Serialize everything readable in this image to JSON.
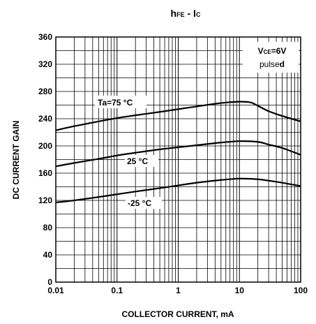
{
  "chart_data": {
    "type": "line",
    "title": {
      "main1": "h",
      "sub1": "FE",
      "mid": " - I",
      "sub2": "C"
    },
    "xlabel": "COLLECTOR CURRENT, mA",
    "ylabel": "DC CURRENT GAIN",
    "x_scale": "log",
    "xlim": [
      0.01,
      100
    ],
    "ylim": [
      0,
      360
    ],
    "x_ticks": [
      0.01,
      0.1,
      1,
      10,
      100
    ],
    "x_tick_labels": [
      "0.01",
      "0.1",
      "1",
      "10",
      "100"
    ],
    "y_ticks": [
      0,
      40,
      80,
      120,
      160,
      200,
      240,
      280,
      320,
      360
    ],
    "y_tick_labels": [
      "0",
      "40",
      "80",
      "120",
      "160",
      "200",
      "240",
      "280",
      "320",
      "360"
    ],
    "grid": true,
    "conditions": {
      "vce_main": "V",
      "vce_sub": "CE",
      "vce_val": "=6V",
      "pulsed_a": "pulse",
      "pulsed_b": "d"
    },
    "series": [
      {
        "name": "Ta=75 °C",
        "x": [
          0.01,
          0.02,
          0.05,
          0.1,
          0.2,
          0.5,
          1,
          2,
          5,
          10,
          15,
          20,
          30,
          50,
          100
        ],
        "values": [
          223,
          229,
          236,
          241,
          245,
          250,
          254,
          258,
          263,
          265,
          264,
          259,
          251,
          244,
          236
        ]
      },
      {
        "name": "25 °C",
        "x": [
          0.01,
          0.02,
          0.05,
          0.1,
          0.2,
          0.5,
          1,
          2,
          5,
          10,
          20,
          30,
          50,
          100
        ],
        "values": [
          170,
          175,
          181,
          186,
          190,
          195,
          198,
          201,
          205,
          207,
          206,
          202,
          197,
          187
        ]
      },
      {
        "name": "-25 °C",
        "x": [
          0.01,
          0.02,
          0.05,
          0.1,
          0.2,
          0.5,
          1,
          2,
          5,
          10,
          20,
          30,
          50,
          100
        ],
        "values": [
          117,
          120,
          125,
          129,
          133,
          138,
          142,
          146,
          150,
          152,
          151,
          149,
          146,
          141
        ]
      }
    ],
    "annotations": [
      "Ta=75 °C",
      "25 °C",
      "-25 °C"
    ]
  }
}
